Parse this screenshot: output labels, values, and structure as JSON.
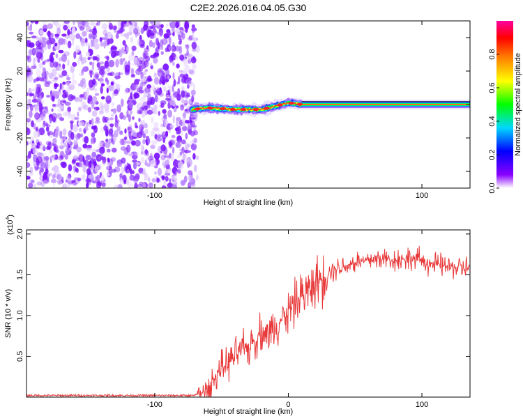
{
  "title": "C2E2.2026.016.04.05.G30",
  "chart_data": [
    {
      "type": "heatmap",
      "xlabel": "Height of straight line (km)",
      "ylabel": "Frequency (Hz)",
      "xlim": [
        -196,
        136
      ],
      "ylim": [
        -50,
        50
      ],
      "x_ticks": [
        -100,
        0,
        100
      ],
      "x_tick_labels": [
        "-100",
        "",
        "100"
      ],
      "y_ticks": [
        -40,
        -20,
        0,
        20,
        40
      ],
      "y_tick_labels": [
        "-40",
        "-20",
        "0",
        "20",
        "40"
      ],
      "noise_region_x": [
        -196,
        -68
      ],
      "signal": {
        "description_points": [
          {
            "x": -72,
            "f": -3
          },
          {
            "x": -60,
            "f": -2
          },
          {
            "x": -40,
            "f": -3
          },
          {
            "x": -20,
            "f": -3
          },
          {
            "x": -5,
            "f": 0
          },
          {
            "x": 0,
            "f": 1
          },
          {
            "x": 10,
            "f": 0
          },
          {
            "x": 136,
            "f": 0
          }
        ]
      },
      "colorbar": {
        "label": "Normalized spectral amplitude",
        "range": [
          0,
          1
        ],
        "ticks": [
          0.0,
          0.2,
          0.4,
          0.6,
          0.8
        ],
        "tick_labels": [
          "0.0",
          "0.2",
          "0.4",
          "0.6",
          "0.8"
        ],
        "colors": [
          "#ffffff",
          "#8a00ff",
          "#0000ff",
          "#00d8ff",
          "#00ff00",
          "#ffff00",
          "#ff8000",
          "#ff0000",
          "#ff00a0"
        ]
      }
    },
    {
      "type": "line",
      "xlabel": "Height of straight line (km)",
      "ylabel": "SNR (10 * v/v)",
      "multiplier_label": "(x10",
      "multiplier_exp": "4",
      "multiplier_close": ")",
      "xlim": [
        -196,
        136
      ],
      "ylim": [
        0,
        2.05
      ],
      "x_ticks": [
        -100,
        0,
        100
      ],
      "x_tick_labels": [
        "-100",
        "0",
        "100"
      ],
      "y_ticks": [
        0.5,
        1.0,
        1.5,
        2.0
      ],
      "y_tick_labels": [
        "0.5",
        "1.0",
        "1.5",
        "2.0"
      ],
      "color": "#e8393a",
      "series": [
        {
          "x": [
            -196,
            -100,
            -70,
            -60,
            -55,
            -50,
            -45,
            -40,
            -35,
            -30,
            -25,
            -20,
            -15,
            -10,
            -5,
            0,
            5,
            10,
            15,
            20,
            25,
            30,
            40,
            50,
            60,
            70,
            80,
            90,
            100,
            110,
            120,
            136
          ],
          "y": [
            0.02,
            0.02,
            0.02,
            0.08,
            0.25,
            0.35,
            0.42,
            0.5,
            0.58,
            0.6,
            0.7,
            0.82,
            0.75,
            0.9,
            0.95,
            1.05,
            1.15,
            1.25,
            1.3,
            1.4,
            1.45,
            1.55,
            1.6,
            1.65,
            1.68,
            1.7,
            1.68,
            1.7,
            1.68,
            1.62,
            1.6,
            1.58
          ]
        }
      ]
    }
  ]
}
